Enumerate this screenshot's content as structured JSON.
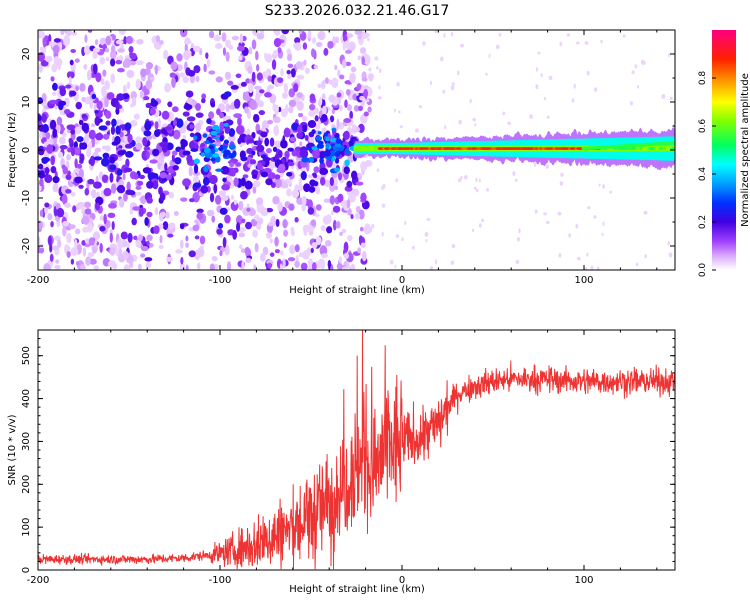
{
  "page": {
    "title": "S233.2026.032.21.46.G17"
  },
  "colors": {
    "axis": "#000000",
    "snr_line": "#ee3333",
    "background": "#ffffff",
    "colormap": [
      "#ffffff",
      "#d9a8ff",
      "#a040ff",
      "#6000e0",
      "#0020ff",
      "#00a0ff",
      "#00ffff",
      "#00ff40",
      "#a0ff00",
      "#ffff00",
      "#ff9000",
      "#ff2000",
      "#ff0080"
    ]
  },
  "chart_data": [
    {
      "type": "heatmap",
      "title": "S233.2026.032.21.46.G17",
      "xlabel": "Height of straight line (km)",
      "ylabel": "Frequency (Hz)",
      "xlim": [
        -200,
        150
      ],
      "ylim": [
        -25,
        25
      ],
      "xticks": [
        "-200",
        "-100",
        "0",
        "100"
      ],
      "yticks": [
        "20",
        "10",
        "0",
        "-10",
        "-20"
      ],
      "description_series": [
        {
          "name": "scattered energy",
          "x_range": [
            -200,
            -25
          ],
          "y_range": [
            -25,
            25
          ],
          "amplitude": 0.15
        },
        {
          "name": "coherent band",
          "x_range": [
            -25,
            150
          ],
          "center_hz": 0.3,
          "amplitude": 0.95
        }
      ],
      "colorbar": {
        "label": "Normalized spectral amplitude",
        "ticks": [
          "0.0",
          "0.2",
          "0.4",
          "0.6",
          "0.8"
        ],
        "range": [
          0,
          1
        ]
      }
    },
    {
      "type": "line",
      "xlabel": "Height of straight line (km)",
      "ylabel": "SNR (10 * v/v)",
      "xlim": [
        -200,
        150
      ],
      "ylim": [
        0,
        560
      ],
      "xticks": [
        "-200",
        "-100",
        "0",
        "100"
      ],
      "yticks": [
        "0",
        "100",
        "200",
        "300",
        "400",
        "500"
      ],
      "series": [
        {
          "name": "SNR",
          "x": [
            -200,
            -180,
            -160,
            -140,
            -120,
            -100,
            -90,
            -80,
            -70,
            -60,
            -50,
            -40,
            -30,
            -25,
            -20,
            -15,
            -10,
            0,
            10,
            20,
            25,
            30,
            40,
            50,
            60,
            80,
            100,
            120,
            150
          ],
          "values": [
            25,
            25,
            25,
            25,
            28,
            38,
            48,
            60,
            80,
            95,
            120,
            160,
            220,
            250,
            270,
            240,
            280,
            300,
            310,
            340,
            380,
            410,
            430,
            440,
            445,
            445,
            440,
            440,
            440
          ]
        }
      ]
    }
  ]
}
